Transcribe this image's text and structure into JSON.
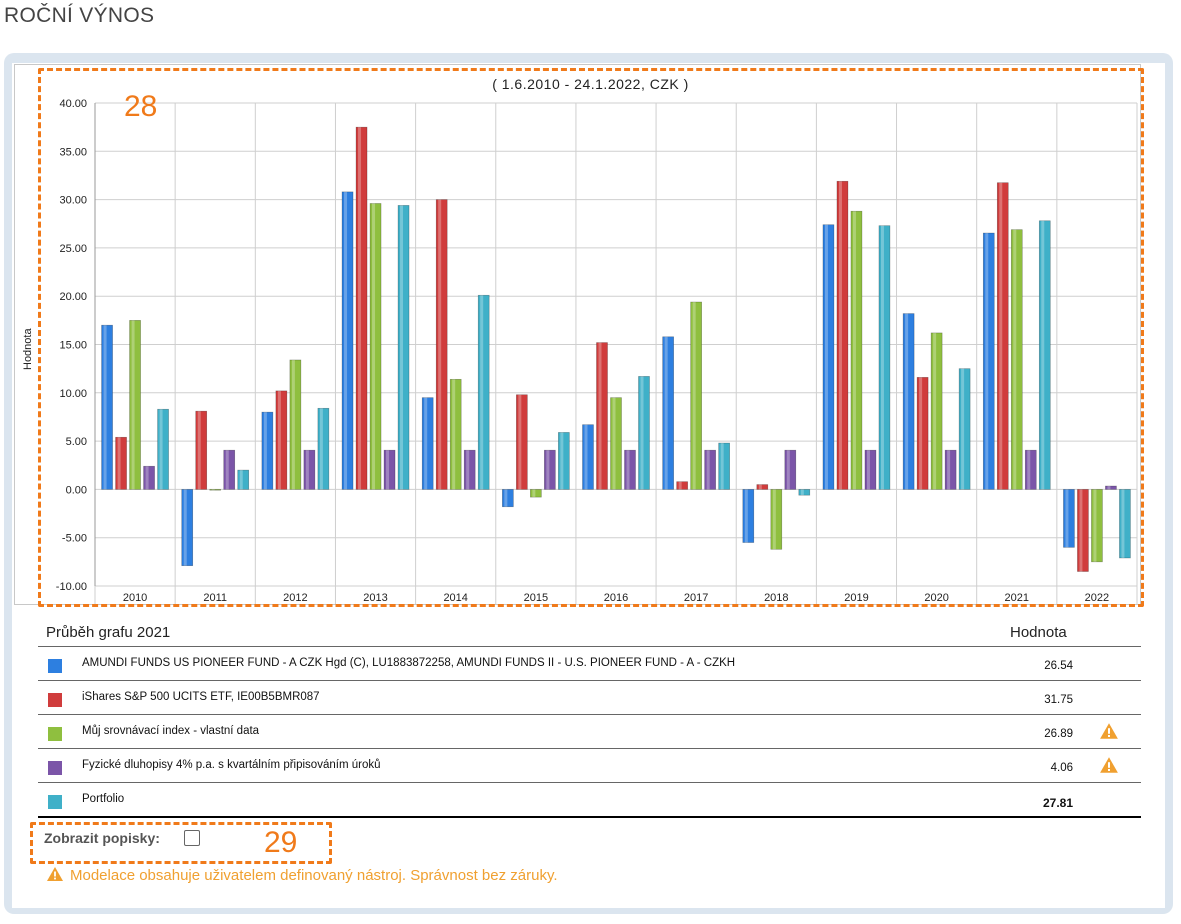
{
  "page": {
    "title": "ROČNÍ VÝNOS"
  },
  "chart_data": {
    "type": "bar",
    "subtitle": "( 1.6.2010 - 24.1.2022, CZK )",
    "ylabel": "Hodnota",
    "ylim": [
      -10,
      40
    ],
    "yticks": [
      "40.00",
      "35.00",
      "30.00",
      "25.00",
      "20.00",
      "15.00",
      "10.00",
      "5.00",
      "0.00",
      "-5.00",
      "-10.00"
    ],
    "categories": [
      "2010",
      "2011",
      "2012",
      "2013",
      "2014",
      "2015",
      "2016",
      "2017",
      "2018",
      "2019",
      "2020",
      "2021",
      "2022"
    ],
    "series": [
      {
        "name": "AMUNDI FUNDS US PIONEER FUND - A CZK Hgd (C), LU1883872258, AMUNDI FUNDS II - U.S. PIONEER FUND - A - CZKH",
        "color": "#2d7fe0",
        "values": [
          17.0,
          -7.9,
          8.0,
          30.8,
          9.5,
          -1.8,
          6.7,
          15.8,
          -5.5,
          27.4,
          18.2,
          26.54,
          -6.0
        ]
      },
      {
        "name": "iShares S&P 500 UCITS ETF, IE00B5BMR087",
        "color": "#d03c3c",
        "values": [
          5.4,
          8.1,
          10.2,
          37.5,
          30.0,
          9.8,
          15.2,
          0.8,
          0.5,
          31.9,
          11.6,
          31.75,
          -8.5
        ]
      },
      {
        "name": "Můj srovnávací index - vlastní data",
        "color": "#8fbf3f",
        "values": [
          17.5,
          0.0,
          13.4,
          29.6,
          11.4,
          -0.8,
          9.5,
          19.4,
          -6.2,
          28.8,
          16.2,
          26.89,
          -7.5
        ]
      },
      {
        "name": "Fyzické dluhopisy 4% p.a. s kvartálním připisováním úroků",
        "color": "#7b55a8",
        "values": [
          2.4,
          4.06,
          4.06,
          4.06,
          4.06,
          4.06,
          4.06,
          4.06,
          4.06,
          4.06,
          4.06,
          4.06,
          0.35
        ]
      },
      {
        "name": "Portfolio",
        "color": "#3fb0c8",
        "values": [
          8.3,
          2.0,
          8.4,
          29.4,
          20.1,
          5.9,
          11.7,
          4.8,
          -0.6,
          27.3,
          12.5,
          27.81,
          -7.1
        ]
      }
    ],
    "grid": true
  },
  "legend": {
    "header_left": "Průběh grafu 2021",
    "header_right": "Hodnota",
    "rows": [
      {
        "label": "AMUNDI FUNDS US PIONEER FUND - A CZK Hgd (C), LU1883872258, AMUNDI FUNDS II - U.S. PIONEER FUND - A - CZKH",
        "value": "26.54",
        "color": "#2d7fe0",
        "warning": false
      },
      {
        "label": "iShares S&P 500 UCITS ETF, IE00B5BMR087",
        "value": "31.75",
        "color": "#d03c3c",
        "warning": false
      },
      {
        "label": "Můj srovnávací index - vlastní data",
        "value": "26.89",
        "color": "#8fbf3f",
        "warning": true
      },
      {
        "label": "Fyzické dluhopisy 4% p.a. s kvartálním připisováním úroků",
        "value": "4.06",
        "color": "#7b55a8",
        "warning": true
      },
      {
        "label": "Portfolio",
        "value": "27.81",
        "color": "#3fb0c8",
        "warning": false
      }
    ]
  },
  "controls": {
    "show_labels": "Zobrazit popisky:"
  },
  "notice": "Modelace obsahuje uživatelem definovaný nástroj. Správnost bez záruky.",
  "annotations": {
    "chart": "28",
    "toggle": "29"
  },
  "colors": {
    "highlight": "#f07a1a",
    "warning": "#f0a030"
  },
  "icons": {
    "warning": "warning-icon"
  }
}
